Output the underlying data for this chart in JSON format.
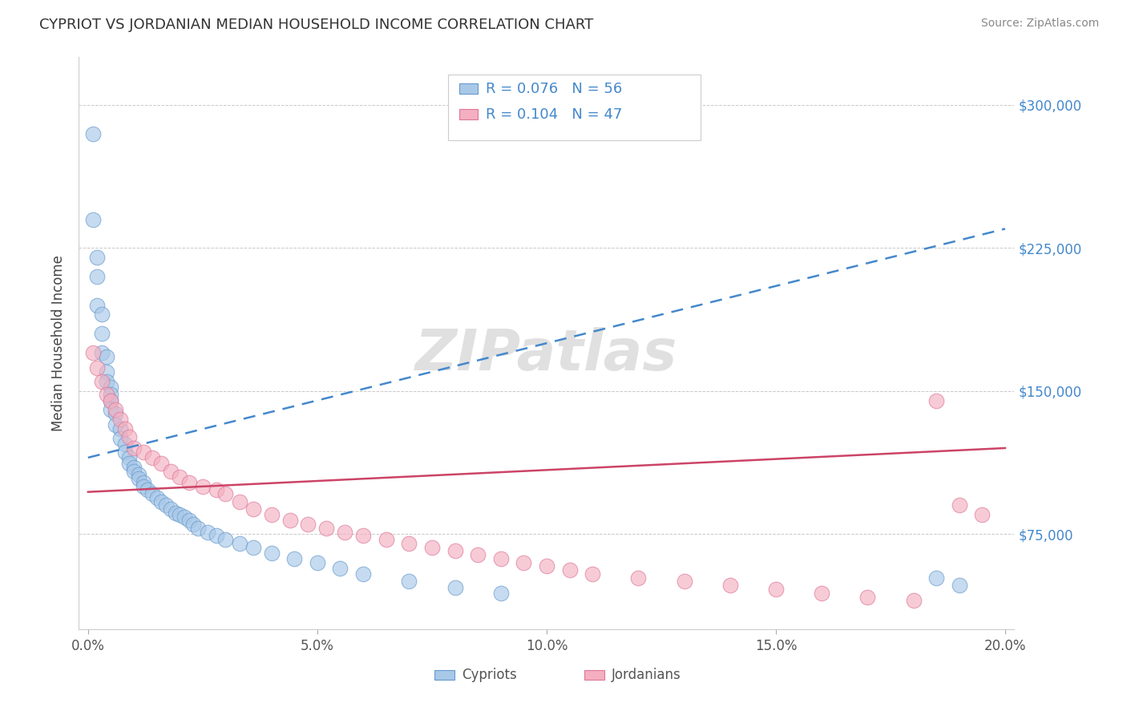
{
  "title": "CYPRIOT VS JORDANIAN MEDIAN HOUSEHOLD INCOME CORRELATION CHART",
  "source": "Source: ZipAtlas.com",
  "ylabel_label": "Median Household Income",
  "x_min": -0.002,
  "x_max": 0.202,
  "y_min": 25000,
  "y_max": 325000,
  "x_ticks": [
    0.0,
    0.05,
    0.1,
    0.15,
    0.2
  ],
  "x_tick_labels": [
    "0.0%",
    "5.0%",
    "10.0%",
    "15.0%",
    "20.0%"
  ],
  "y_ticks": [
    75000,
    150000,
    225000,
    300000
  ],
  "y_tick_labels": [
    "$75,000",
    "$150,000",
    "$225,000",
    "$300,000"
  ],
  "cypriot_color": "#a8c8e8",
  "cypriot_edge_color": "#6699cc",
  "jordanian_color": "#f4afc0",
  "jordanian_edge_color": "#dd7799",
  "trend_cypriot_color": "#4488cc",
  "trend_jordanian_color": "#cc4466",
  "legend_R_cypriot": "R = 0.076",
  "legend_N_cypriot": "N = 56",
  "legend_R_jordanian": "R = 0.104",
  "legend_N_jordanian": "N = 47",
  "legend_text_color": "#4488cc",
  "cy_trend_x0": 0.0,
  "cy_trend_y0": 115000,
  "cy_trend_x1": 0.2,
  "cy_trend_y1": 235000,
  "jo_trend_x0": 0.0,
  "jo_trend_y0": 97000,
  "jo_trend_x1": 0.2,
  "jo_trend_y1": 120000,
  "watermark": "ZIPatlas",
  "cypriot_x": [
    0.001,
    0.001,
    0.002,
    0.002,
    0.002,
    0.003,
    0.003,
    0.003,
    0.004,
    0.004,
    0.004,
    0.005,
    0.005,
    0.005,
    0.005,
    0.006,
    0.006,
    0.007,
    0.007,
    0.008,
    0.008,
    0.009,
    0.009,
    0.01,
    0.01,
    0.011,
    0.011,
    0.012,
    0.012,
    0.013,
    0.014,
    0.015,
    0.016,
    0.017,
    0.018,
    0.019,
    0.02,
    0.021,
    0.022,
    0.023,
    0.024,
    0.026,
    0.028,
    0.03,
    0.033,
    0.036,
    0.04,
    0.045,
    0.05,
    0.055,
    0.06,
    0.07,
    0.08,
    0.09,
    0.185,
    0.19
  ],
  "cypriot_y": [
    285000,
    240000,
    220000,
    210000,
    195000,
    190000,
    180000,
    170000,
    168000,
    160000,
    155000,
    152000,
    148000,
    145000,
    140000,
    138000,
    132000,
    130000,
    125000,
    122000,
    118000,
    115000,
    112000,
    110000,
    108000,
    106000,
    104000,
    102000,
    100000,
    98000,
    96000,
    94000,
    92000,
    90000,
    88000,
    86000,
    85000,
    84000,
    82000,
    80000,
    78000,
    76000,
    74000,
    72000,
    70000,
    68000,
    65000,
    62000,
    60000,
    57000,
    54000,
    50000,
    47000,
    44000,
    52000,
    48000
  ],
  "jordanian_x": [
    0.001,
    0.002,
    0.003,
    0.004,
    0.005,
    0.006,
    0.007,
    0.008,
    0.009,
    0.01,
    0.012,
    0.014,
    0.016,
    0.018,
    0.02,
    0.022,
    0.025,
    0.028,
    0.03,
    0.033,
    0.036,
    0.04,
    0.044,
    0.048,
    0.052,
    0.056,
    0.06,
    0.065,
    0.07,
    0.075,
    0.08,
    0.085,
    0.09,
    0.095,
    0.1,
    0.105,
    0.11,
    0.12,
    0.13,
    0.14,
    0.15,
    0.16,
    0.17,
    0.18,
    0.185,
    0.19,
    0.195
  ],
  "jordanian_y": [
    170000,
    162000,
    155000,
    148000,
    145000,
    140000,
    135000,
    130000,
    126000,
    120000,
    118000,
    115000,
    112000,
    108000,
    105000,
    102000,
    100000,
    98000,
    96000,
    92000,
    88000,
    85000,
    82000,
    80000,
    78000,
    76000,
    74000,
    72000,
    70000,
    68000,
    66000,
    64000,
    62000,
    60000,
    58000,
    56000,
    54000,
    52000,
    50000,
    48000,
    46000,
    44000,
    42000,
    40000,
    145000,
    90000,
    85000
  ]
}
